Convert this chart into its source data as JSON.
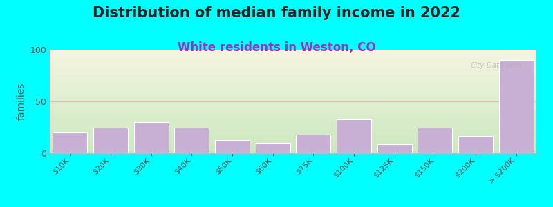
{
  "title": "Distribution of median family income in 2022",
  "subtitle": "White residents in Weston, CO",
  "ylabel": "families",
  "categories": [
    "$10K",
    "$20K",
    "$30K",
    "$40K",
    "$50K",
    "$60K",
    "$75K",
    "$100K",
    "$125K",
    "$150K",
    "$200K",
    "> $200K"
  ],
  "values": [
    20,
    25,
    30,
    25,
    13,
    10,
    18,
    33,
    9,
    25,
    17,
    90
  ],
  "bar_color": "#c8afd4",
  "bar_edgecolor": "#ffffff",
  "background_color": "#00ffff",
  "plot_bg_top": "#cce8c0",
  "plot_bg_bottom": "#f5f5e0",
  "title_color": "#222222",
  "subtitle_color": "#9933bb",
  "ylabel_color": "#555555",
  "tick_color": "#555555",
  "gridline_color": "#e8b8b8",
  "ylim": [
    0,
    100
  ],
  "yticks": [
    0,
    50,
    100
  ],
  "watermark": "City-Data.com",
  "title_fontsize": 15,
  "subtitle_fontsize": 12,
  "ylabel_fontsize": 10
}
